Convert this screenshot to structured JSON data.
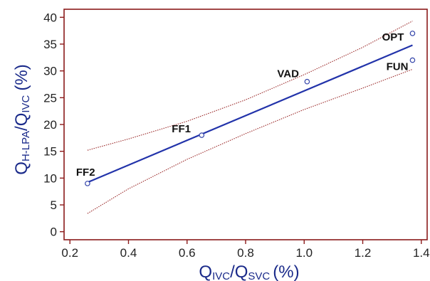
{
  "chart_data": {
    "type": "scatter",
    "xlabel": {
      "main": "Q",
      "sub1": "IVC",
      "sep": "/Q",
      "sub2": "SVC",
      "unit": "(%)"
    },
    "ylabel": {
      "main": "Q",
      "sub1": "H-LPA",
      "sep": "/Q",
      "sub2": "IVC",
      "unit": "(%)"
    },
    "xlim": [
      0.18,
      1.42
    ],
    "ylim": [
      -1.5,
      41.5
    ],
    "xticks": [
      0.2,
      0.4,
      0.6,
      0.8,
      1.0,
      1.2,
      1.4
    ],
    "xtick_labels": [
      "0.2",
      "0.4",
      "0.6",
      "0.8",
      "1.0",
      "1.2",
      "1.4"
    ],
    "yticks": [
      0,
      5,
      10,
      15,
      20,
      25,
      30,
      35,
      40
    ],
    "ytick_labels": [
      "0",
      "5",
      "10",
      "15",
      "20",
      "25",
      "30",
      "35",
      "40"
    ],
    "grid": false,
    "points": [
      {
        "label": "FF2",
        "x": 0.26,
        "y": 9
      },
      {
        "label": "FF1",
        "x": 0.65,
        "y": 18
      },
      {
        "label": "VAD",
        "x": 1.01,
        "y": 28
      },
      {
        "label": "OPT",
        "x": 1.37,
        "y": 37
      },
      {
        "label": "FUN",
        "x": 1.37,
        "y": 32
      }
    ],
    "fit_line": {
      "x": [
        0.26,
        1.37
      ],
      "y": [
        9.2,
        34.8
      ]
    },
    "upper_band": {
      "x": [
        0.26,
        0.4,
        0.6,
        0.8,
        1.0,
        1.2,
        1.37
      ],
      "y": [
        15.2,
        17.3,
        20.6,
        24.6,
        29.3,
        34.4,
        39.3
      ]
    },
    "lower_band": {
      "x": [
        0.26,
        0.4,
        0.6,
        0.8,
        1.0,
        1.2,
        1.37
      ],
      "y": [
        3.4,
        8.0,
        13.5,
        18.3,
        22.8,
        26.8,
        30.3
      ]
    },
    "colors": {
      "axes": "#8b1a1a",
      "fit_line": "#2233aa",
      "band": "#9b2a2a",
      "marker": "#3344aa",
      "axis_label": "#1a2a8a"
    }
  }
}
